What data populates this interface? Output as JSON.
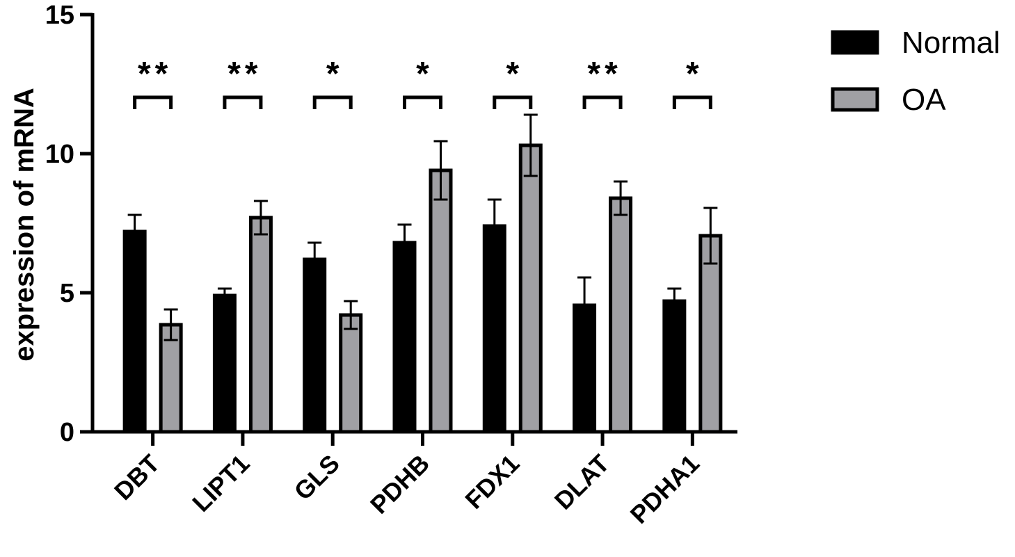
{
  "chart_data": {
    "type": "bar",
    "ylabel": "expression of mRNA",
    "xlabel": "",
    "ylim": [
      0,
      15
    ],
    "yticks": [
      0,
      5,
      10,
      15
    ],
    "categories": [
      "DBT",
      "LIPT1",
      "GLS",
      "PDHB",
      "FDX1",
      "DLAT",
      "PDHA1"
    ],
    "series": [
      {
        "name": "Normal",
        "color": "#000000",
        "values": [
          7.2,
          4.9,
          6.2,
          6.8,
          7.4,
          4.55,
          4.7
        ],
        "errors": [
          0.6,
          0.25,
          0.6,
          0.65,
          0.95,
          1.0,
          0.45
        ]
      },
      {
        "name": "OA",
        "color": "#a0a0a4",
        "values": [
          3.85,
          7.7,
          4.2,
          9.4,
          10.3,
          8.4,
          7.05
        ],
        "errors": [
          0.55,
          0.6,
          0.5,
          1.05,
          1.1,
          0.6,
          1.0
        ]
      }
    ],
    "significance": [
      "**",
      "**",
      "*",
      "*",
      "*",
      "**",
      "*"
    ],
    "legend_position": "top-right",
    "grid": false
  }
}
